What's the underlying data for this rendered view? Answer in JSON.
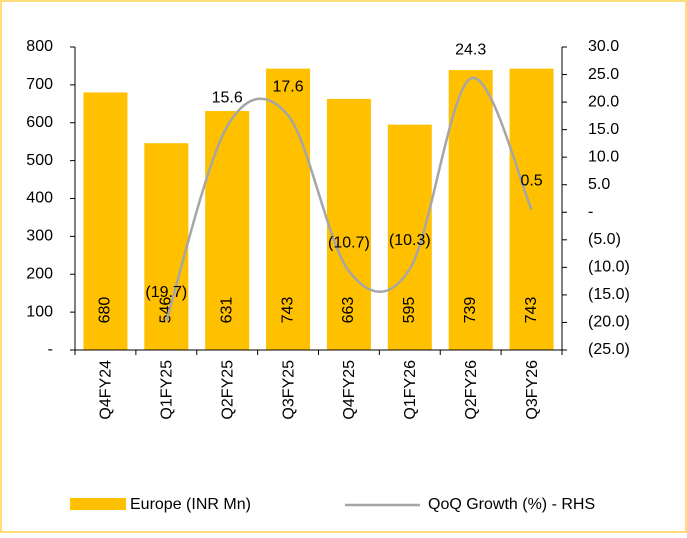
{
  "chart_data": {
    "type": "bar_line",
    "categories": [
      "Q4FY24",
      "Q1FY25",
      "Q2FY25",
      "Q3FY25",
      "Q4FY25",
      "Q1FY26",
      "Q2FY26",
      "Q3FY26"
    ],
    "series": [
      {
        "name": "Europe (INR Mn)",
        "color": "#FFC000",
        "type": "bar",
        "values": [
          680,
          546,
          631,
          743,
          663,
          595,
          739,
          743
        ]
      },
      {
        "name": "QoQ Growth (%) - RHS",
        "color": "#A6A6A6",
        "type": "line",
        "axis": "y2",
        "smooth": true,
        "values": [
          null,
          -19.7,
          15.6,
          17.6,
          -10.7,
          -10.3,
          24.3,
          0.5
        ],
        "value_labels": [
          null,
          "(19.7)",
          "15.6",
          "17.6",
          "(10.7)",
          "(10.3)",
          "24.3",
          "0.5"
        ]
      }
    ],
    "ylim": [
      0,
      800
    ],
    "yticks": [
      {
        "value": 0,
        "label": "-"
      },
      100,
      200,
      300,
      400,
      500,
      600,
      700,
      800
    ],
    "y2lim": [
      -25,
      30
    ],
    "y2ticks": [
      {
        "value": -25,
        "label": "(25.0)"
      },
      {
        "value": -20,
        "label": "(20.0)"
      },
      {
        "value": -15,
        "label": "(15.0)"
      },
      {
        "value": -10,
        "label": "(10.0)"
      },
      {
        "value": -5,
        "label": "(5.0)"
      },
      {
        "value": 0,
        "label": "-"
      },
      {
        "value": 5,
        "label": "5.0"
      },
      {
        "value": 10,
        "label": "10.0"
      },
      {
        "value": 15,
        "label": "15.0"
      },
      {
        "value": 20,
        "label": "20.0"
      },
      {
        "value": 25,
        "label": "25.0"
      },
      {
        "value": 30,
        "label": "30.0"
      }
    ],
    "legend": "bottom"
  }
}
